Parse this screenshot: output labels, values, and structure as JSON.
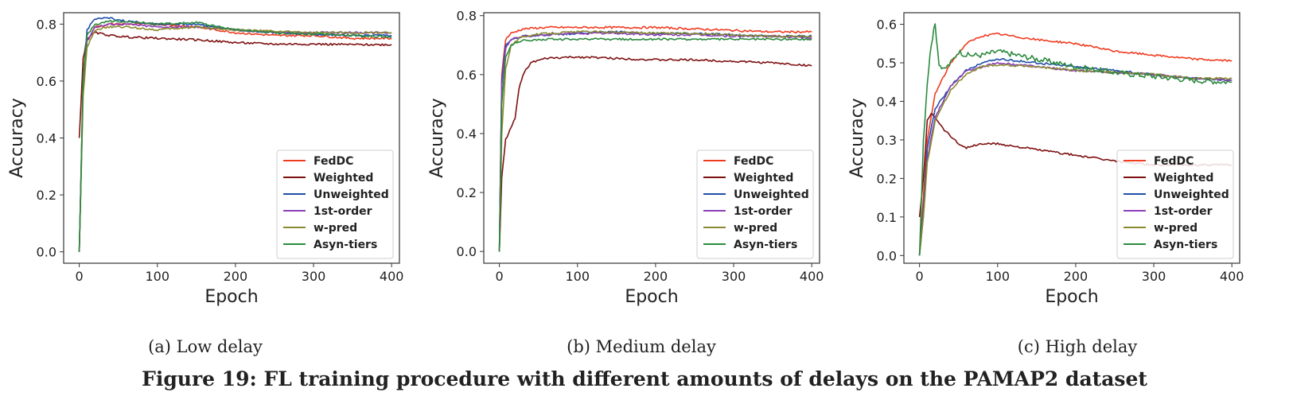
{
  "figure": {
    "title": "Figure 19: FL training procedure with different amounts of delays on the PAMAP2 dataset"
  },
  "colors": {
    "FedDC": "#f03b20",
    "Weighted": "#7f1010",
    "Unweighted": "#1f4fa8",
    "1st-order": "#8b3fb8",
    "w-pred": "#8a8a30",
    "Asyn-tiers": "#2b8a3e"
  },
  "chart_data": [
    {
      "type": "line",
      "caption": "(a)  Low delay",
      "xlabel": "Epoch",
      "ylabel": "Accuracy",
      "xlim": [
        -20,
        410
      ],
      "ylim": [
        -0.04,
        0.84
      ],
      "xticks": [
        0,
        100,
        200,
        300,
        400
      ],
      "yticks": [
        0.0,
        0.2,
        0.4,
        0.6,
        0.8
      ],
      "ytick_labels": [
        "0.0",
        "0.2",
        "0.4",
        "0.6",
        "0.8"
      ],
      "grid": false,
      "legend_position": "bottom-right",
      "series": [
        {
          "name": "FedDC",
          "x": [
            0,
            5,
            10,
            20,
            40,
            60,
            100,
            150,
            200,
            250,
            300,
            350,
            400
          ],
          "y": [
            0.0,
            0.6,
            0.74,
            0.79,
            0.8,
            0.8,
            0.8,
            0.79,
            0.77,
            0.76,
            0.76,
            0.75,
            0.75
          ]
        },
        {
          "name": "Weighted",
          "x": [
            0,
            5,
            10,
            20,
            40,
            60,
            100,
            150,
            200,
            250,
            300,
            350,
            400
          ],
          "y": [
            0.4,
            0.68,
            0.75,
            0.77,
            0.76,
            0.755,
            0.75,
            0.745,
            0.735,
            0.73,
            0.73,
            0.728,
            0.728
          ]
        },
        {
          "name": "Unweighted",
          "x": [
            0,
            5,
            10,
            20,
            40,
            60,
            100,
            150,
            200,
            250,
            300,
            350,
            400
          ],
          "y": [
            0.0,
            0.6,
            0.78,
            0.82,
            0.82,
            0.81,
            0.8,
            0.8,
            0.78,
            0.77,
            0.765,
            0.76,
            0.76
          ]
        },
        {
          "name": "1st-order",
          "x": [
            0,
            5,
            10,
            20,
            40,
            60,
            100,
            150,
            200,
            250,
            300,
            350,
            400
          ],
          "y": [
            0.0,
            0.58,
            0.74,
            0.79,
            0.8,
            0.8,
            0.79,
            0.79,
            0.78,
            0.77,
            0.77,
            0.77,
            0.77
          ]
        },
        {
          "name": "w-pred",
          "x": [
            0,
            5,
            10,
            20,
            40,
            60,
            100,
            150,
            200,
            250,
            300,
            350,
            400
          ],
          "y": [
            0.0,
            0.55,
            0.72,
            0.78,
            0.79,
            0.79,
            0.78,
            0.79,
            0.78,
            0.775,
            0.77,
            0.77,
            0.77
          ]
        },
        {
          "name": "Asyn-tiers",
          "x": [
            0,
            5,
            10,
            20,
            40,
            60,
            100,
            150,
            200,
            250,
            300,
            350,
            400
          ],
          "y": [
            0.0,
            0.62,
            0.76,
            0.8,
            0.81,
            0.81,
            0.8,
            0.805,
            0.78,
            0.77,
            0.765,
            0.76,
            0.755
          ]
        }
      ]
    },
    {
      "type": "line",
      "caption": "(b)  Medium delay",
      "xlabel": "Epoch",
      "ylabel": "Accuracy",
      "xlim": [
        -20,
        410
      ],
      "ylim": [
        -0.04,
        0.81
      ],
      "xticks": [
        0,
        100,
        200,
        300,
        400
      ],
      "yticks": [
        0.0,
        0.2,
        0.4,
        0.6,
        0.8
      ],
      "ytick_labels": [
        "0.0",
        "0.2",
        "0.4",
        "0.6",
        "0.8"
      ],
      "grid": false,
      "legend_position": "bottom-right",
      "series": [
        {
          "name": "FedDC",
          "x": [
            0,
            3,
            8,
            15,
            30,
            60,
            100,
            150,
            200,
            250,
            300,
            350,
            400
          ],
          "y": [
            0.0,
            0.6,
            0.72,
            0.74,
            0.755,
            0.76,
            0.76,
            0.76,
            0.76,
            0.755,
            0.75,
            0.745,
            0.745
          ]
        },
        {
          "name": "Weighted",
          "x": [
            0,
            3,
            8,
            15,
            20,
            25,
            30,
            40,
            60,
            100,
            150,
            200,
            250,
            300,
            350,
            400
          ],
          "y": [
            0.0,
            0.25,
            0.38,
            0.42,
            0.45,
            0.55,
            0.6,
            0.64,
            0.655,
            0.66,
            0.655,
            0.65,
            0.65,
            0.645,
            0.64,
            0.63
          ]
        },
        {
          "name": "Unweighted",
          "x": [
            0,
            3,
            8,
            15,
            30,
            60,
            100,
            150,
            200,
            250,
            300,
            350,
            400
          ],
          "y": [
            0.0,
            0.58,
            0.7,
            0.72,
            0.73,
            0.735,
            0.74,
            0.745,
            0.74,
            0.74,
            0.735,
            0.73,
            0.73
          ]
        },
        {
          "name": "1st-order",
          "x": [
            0,
            3,
            8,
            15,
            30,
            60,
            100,
            150,
            200,
            250,
            300,
            350,
            400
          ],
          "y": [
            0.0,
            0.56,
            0.69,
            0.72,
            0.73,
            0.735,
            0.74,
            0.74,
            0.735,
            0.735,
            0.73,
            0.73,
            0.725
          ]
        },
        {
          "name": "w-pred",
          "x": [
            0,
            3,
            8,
            15,
            30,
            60,
            100,
            150,
            200,
            250,
            300,
            350,
            400
          ],
          "y": [
            0.0,
            0.4,
            0.62,
            0.7,
            0.73,
            0.74,
            0.745,
            0.745,
            0.74,
            0.74,
            0.735,
            0.73,
            0.73
          ]
        },
        {
          "name": "Asyn-tiers",
          "x": [
            0,
            3,
            8,
            15,
            30,
            60,
            100,
            150,
            200,
            250,
            300,
            350,
            400
          ],
          "y": [
            0.0,
            0.5,
            0.66,
            0.7,
            0.715,
            0.72,
            0.72,
            0.72,
            0.72,
            0.72,
            0.72,
            0.72,
            0.72
          ]
        }
      ]
    },
    {
      "type": "line",
      "caption": "(c)  High delay",
      "xlabel": "Epoch",
      "ylabel": "Accuracy",
      "xlim": [
        -20,
        410
      ],
      "ylim": [
        -0.02,
        0.63
      ],
      "xticks": [
        0,
        100,
        200,
        300,
        400
      ],
      "yticks": [
        0.0,
        0.1,
        0.2,
        0.3,
        0.4,
        0.5,
        0.6
      ],
      "ytick_labels": [
        "0.0",
        "0.1",
        "0.2",
        "0.3",
        "0.4",
        "0.5",
        "0.6"
      ],
      "grid": false,
      "legend_position": "bottom-right",
      "series": [
        {
          "name": "FedDC",
          "x": [
            0,
            5,
            10,
            20,
            40,
            60,
            80,
            100,
            150,
            200,
            250,
            300,
            350,
            400
          ],
          "y": [
            0.0,
            0.15,
            0.3,
            0.42,
            0.5,
            0.55,
            0.57,
            0.575,
            0.56,
            0.55,
            0.53,
            0.52,
            0.51,
            0.505
          ]
        },
        {
          "name": "Weighted",
          "x": [
            0,
            5,
            10,
            15,
            20,
            30,
            40,
            50,
            60,
            80,
            100,
            150,
            200,
            250,
            300,
            350,
            400
          ],
          "y": [
            0.1,
            0.2,
            0.35,
            0.37,
            0.36,
            0.33,
            0.31,
            0.29,
            0.28,
            0.29,
            0.29,
            0.275,
            0.26,
            0.245,
            0.235,
            0.235,
            0.235
          ]
        },
        {
          "name": "Unweighted",
          "x": [
            0,
            5,
            10,
            20,
            40,
            60,
            80,
            100,
            150,
            200,
            250,
            300,
            350,
            400
          ],
          "y": [
            0.0,
            0.12,
            0.28,
            0.38,
            0.44,
            0.48,
            0.5,
            0.51,
            0.5,
            0.49,
            0.48,
            0.47,
            0.46,
            0.455
          ]
        },
        {
          "name": "1st-order",
          "x": [
            0,
            5,
            10,
            20,
            40,
            60,
            80,
            100,
            150,
            200,
            250,
            300,
            350,
            400
          ],
          "y": [
            0.0,
            0.1,
            0.25,
            0.36,
            0.44,
            0.48,
            0.49,
            0.5,
            0.49,
            0.48,
            0.475,
            0.47,
            0.46,
            0.455
          ]
        },
        {
          "name": "w-pred",
          "x": [
            0,
            5,
            10,
            20,
            40,
            60,
            80,
            100,
            150,
            200,
            250,
            300,
            350,
            400
          ],
          "y": [
            0.0,
            0.1,
            0.24,
            0.35,
            0.43,
            0.47,
            0.49,
            0.495,
            0.49,
            0.48,
            0.475,
            0.47,
            0.46,
            0.46
          ]
        },
        {
          "name": "Asyn-tiers",
          "x": [
            0,
            5,
            10,
            15,
            20,
            25,
            30,
            40,
            50,
            60,
            80,
            100,
            150,
            200,
            250,
            300,
            350,
            400
          ],
          "y": [
            0.0,
            0.3,
            0.45,
            0.55,
            0.6,
            0.5,
            0.48,
            0.5,
            0.53,
            0.52,
            0.52,
            0.53,
            0.51,
            0.49,
            0.475,
            0.465,
            0.455,
            0.45
          ]
        }
      ]
    }
  ]
}
